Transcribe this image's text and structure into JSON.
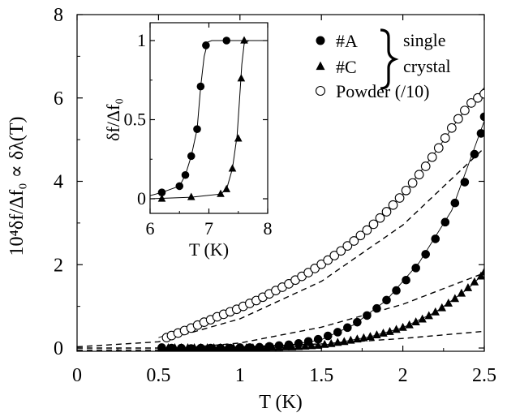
{
  "chart_data": [
    {
      "type": "scatter",
      "title": "",
      "xlabel": "T (K)",
      "ylabel": "10⁴δf/Δf₀ ∝ δλ(T)",
      "xlim": [
        0,
        2.5
      ],
      "ylim": [
        -0.2,
        8
      ],
      "x_ticks": [
        "0",
        "0.5",
        "1",
        "1.5",
        "2",
        "2.5"
      ],
      "y_ticks": [
        "0",
        "2",
        "4",
        "6",
        "8"
      ],
      "legend": {
        "placement": "top-right",
        "entries": [
          {
            "label": "#A",
            "marker": "filled-circle"
          },
          {
            "label": "#C",
            "marker": "filled-triangle"
          },
          {
            "label": "Powder (/10)",
            "marker": "open-circle"
          }
        ],
        "brace_label": [
          "single",
          "crystal"
        ]
      },
      "series": [
        {
          "name": "#A",
          "marker": "filled-circle",
          "points": [
            [
              0.52,
              0.01
            ],
            [
              0.58,
              0.0
            ],
            [
              0.64,
              0.0
            ],
            [
              0.7,
              -0.01
            ],
            [
              0.76,
              0.0
            ],
            [
              0.82,
              0.0
            ],
            [
              0.88,
              0.0
            ],
            [
              0.94,
              0.0
            ],
            [
              1.0,
              0.01
            ],
            [
              1.06,
              0.01
            ],
            [
              1.12,
              0.02
            ],
            [
              1.18,
              0.04
            ],
            [
              1.24,
              0.06
            ],
            [
              1.3,
              0.08
            ],
            [
              1.36,
              0.11
            ],
            [
              1.42,
              0.16
            ],
            [
              1.48,
              0.21
            ],
            [
              1.54,
              0.29
            ],
            [
              1.6,
              0.38
            ],
            [
              1.66,
              0.49
            ],
            [
              1.72,
              0.62
            ],
            [
              1.78,
              0.78
            ],
            [
              1.84,
              0.95
            ],
            [
              1.9,
              1.15
            ],
            [
              1.96,
              1.38
            ],
            [
              2.02,
              1.63
            ],
            [
              2.08,
              1.92
            ],
            [
              2.14,
              2.25
            ],
            [
              2.2,
              2.62
            ],
            [
              2.26,
              3.02
            ],
            [
              2.32,
              3.48
            ],
            [
              2.38,
              3.98
            ],
            [
              2.44,
              4.65
            ],
            [
              2.48,
              5.15
            ],
            [
              2.5,
              5.55
            ]
          ]
        },
        {
          "name": "#C",
          "marker": "filled-triangle",
          "points": [
            [
              0.52,
              0.0
            ],
            [
              0.56,
              0.0
            ],
            [
              0.6,
              0.0
            ],
            [
              0.64,
              0.0
            ],
            [
              0.68,
              0.0
            ],
            [
              0.72,
              0.0
            ],
            [
              0.76,
              0.0
            ],
            [
              0.8,
              0.0
            ],
            [
              0.84,
              0.0
            ],
            [
              0.88,
              0.0
            ],
            [
              0.92,
              0.0
            ],
            [
              0.96,
              0.0
            ],
            [
              1.0,
              0.0
            ],
            [
              1.04,
              0.0
            ],
            [
              1.08,
              0.0
            ],
            [
              1.12,
              0.0
            ],
            [
              1.16,
              0.0
            ],
            [
              1.2,
              0.01
            ],
            [
              1.24,
              0.01
            ],
            [
              1.28,
              0.02
            ],
            [
              1.32,
              0.02
            ],
            [
              1.36,
              0.03
            ],
            [
              1.4,
              0.04
            ],
            [
              1.44,
              0.05
            ],
            [
              1.48,
              0.06
            ],
            [
              1.52,
              0.08
            ],
            [
              1.56,
              0.1
            ],
            [
              1.6,
              0.13
            ],
            [
              1.64,
              0.15
            ],
            [
              1.68,
              0.18
            ],
            [
              1.72,
              0.21
            ],
            [
              1.76,
              0.24
            ],
            [
              1.8,
              0.27
            ],
            [
              1.84,
              0.31
            ],
            [
              1.88,
              0.35
            ],
            [
              1.92,
              0.39
            ],
            [
              1.96,
              0.44
            ],
            [
              2.0,
              0.49
            ],
            [
              2.04,
              0.55
            ],
            [
              2.08,
              0.62
            ],
            [
              2.12,
              0.69
            ],
            [
              2.16,
              0.77
            ],
            [
              2.2,
              0.86
            ],
            [
              2.24,
              0.96
            ],
            [
              2.28,
              1.07
            ],
            [
              2.32,
              1.18
            ],
            [
              2.36,
              1.31
            ],
            [
              2.4,
              1.44
            ],
            [
              2.44,
              1.58
            ],
            [
              2.48,
              1.72
            ],
            [
              2.5,
              1.82
            ]
          ]
        },
        {
          "name": "Powder (/10)",
          "marker": "open-circle",
          "points": [
            [
              0.55,
              0.25
            ],
            [
              0.58,
              0.3
            ],
            [
              0.62,
              0.36
            ],
            [
              0.66,
              0.42
            ],
            [
              0.7,
              0.48
            ],
            [
              0.74,
              0.55
            ],
            [
              0.78,
              0.62
            ],
            [
              0.82,
              0.68
            ],
            [
              0.86,
              0.75
            ],
            [
              0.9,
              0.81
            ],
            [
              0.94,
              0.87
            ],
            [
              0.98,
              0.93
            ],
            [
              1.02,
              1.0
            ],
            [
              1.06,
              1.07
            ],
            [
              1.1,
              1.14
            ],
            [
              1.14,
              1.22
            ],
            [
              1.18,
              1.3
            ],
            [
              1.22,
              1.38
            ],
            [
              1.26,
              1.46
            ],
            [
              1.3,
              1.54
            ],
            [
              1.34,
              1.63
            ],
            [
              1.38,
              1.72
            ],
            [
              1.42,
              1.81
            ],
            [
              1.46,
              1.91
            ],
            [
              1.5,
              2.01
            ],
            [
              1.54,
              2.11
            ],
            [
              1.58,
              2.22
            ],
            [
              1.62,
              2.33
            ],
            [
              1.66,
              2.45
            ],
            [
              1.7,
              2.57
            ],
            [
              1.74,
              2.7
            ],
            [
              1.78,
              2.83
            ],
            [
              1.82,
              2.97
            ],
            [
              1.86,
              3.12
            ],
            [
              1.9,
              3.27
            ],
            [
              1.94,
              3.43
            ],
            [
              1.98,
              3.6
            ],
            [
              2.02,
              3.78
            ],
            [
              2.06,
              3.96
            ],
            [
              2.1,
              4.16
            ],
            [
              2.14,
              4.36
            ],
            [
              2.18,
              4.58
            ],
            [
              2.22,
              4.8
            ],
            [
              2.26,
              5.04
            ],
            [
              2.3,
              5.28
            ],
            [
              2.34,
              5.5
            ],
            [
              2.38,
              5.7
            ],
            [
              2.42,
              5.88
            ],
            [
              2.46,
              6.0
            ],
            [
              2.5,
              6.1
            ]
          ]
        }
      ],
      "fits": [
        {
          "style": "solid",
          "points": [
            [
              0.5,
              0.0
            ],
            [
              0.9,
              0.0
            ],
            [
              1.1,
              0.02
            ],
            [
              1.3,
              0.07
            ],
            [
              1.5,
              0.2
            ],
            [
              1.7,
              0.56
            ],
            [
              1.9,
              1.15
            ],
            [
              2.1,
              2.05
            ],
            [
              2.3,
              3.3
            ],
            [
              2.5,
              5.45
            ]
          ]
        },
        {
          "style": "solid",
          "points": [
            [
              0.5,
              0.25
            ],
            [
              0.8,
              0.65
            ],
            [
              1.1,
              1.12
            ],
            [
              1.4,
              1.76
            ],
            [
              1.7,
              2.57
            ],
            [
              2.0,
              3.68
            ],
            [
              2.2,
              4.7
            ],
            [
              2.35,
              5.55
            ],
            [
              2.5,
              6.25
            ]
          ]
        },
        {
          "style": "solid",
          "points": [
            [
              0.5,
              0.0
            ],
            [
              1.2,
              0.0
            ],
            [
              1.5,
              0.06
            ],
            [
              1.8,
              0.27
            ],
            [
              2.0,
              0.49
            ],
            [
              2.2,
              0.86
            ],
            [
              2.4,
              1.42
            ],
            [
              2.5,
              1.8
            ]
          ]
        },
        {
          "style": "dashed",
          "points": [
            [
              0.0,
              0.03
            ],
            [
              0.5,
              0.15
            ],
            [
              1.0,
              0.7
            ],
            [
              1.5,
              1.6
            ],
            [
              2.0,
              2.95
            ],
            [
              2.5,
              4.8
            ]
          ]
        },
        {
          "style": "dashed",
          "points": [
            [
              0.0,
              -0.05
            ],
            [
              0.5,
              -0.05
            ],
            [
              1.0,
              0.12
            ],
            [
              1.5,
              0.5
            ],
            [
              2.0,
              1.05
            ],
            [
              2.5,
              1.8
            ]
          ]
        },
        {
          "style": "dashed",
          "points": [
            [
              0.0,
              0.0
            ],
            [
              0.5,
              0.0
            ],
            [
              1.0,
              0.03
            ],
            [
              1.5,
              0.1
            ],
            [
              2.0,
              0.23
            ],
            [
              2.5,
              0.4
            ]
          ]
        }
      ],
      "grid": false
    },
    {
      "type": "scatter",
      "title": "",
      "xlabel": "T (K)",
      "ylabel": "δf/Δf₀",
      "xlim": [
        6,
        8
      ],
      "ylim": [
        -0.1,
        1.1
      ],
      "x_ticks": [
        "6",
        "7",
        "8"
      ],
      "y_ticks": [
        "0",
        "0.5",
        "1"
      ],
      "series": [
        {
          "name": "#A",
          "marker": "filled-circle",
          "points": [
            [
              6.2,
              0.04
            ],
            [
              6.5,
              0.08
            ],
            [
              6.6,
              0.15
            ],
            [
              6.7,
              0.27
            ],
            [
              6.8,
              0.44
            ],
            [
              6.86,
              0.71
            ],
            [
              6.95,
              0.97
            ],
            [
              7.3,
              1.0
            ]
          ]
        },
        {
          "name": "#C",
          "marker": "filled-triangle",
          "points": [
            [
              6.2,
              0.0
            ],
            [
              6.7,
              0.01
            ],
            [
              7.2,
              0.03
            ],
            [
              7.3,
              0.06
            ],
            [
              7.4,
              0.19
            ],
            [
              7.5,
              0.38
            ],
            [
              7.55,
              0.76
            ],
            [
              7.6,
              1.0
            ]
          ]
        }
      ],
      "fits": [
        {
          "style": "solid",
          "points": [
            [
              6.0,
              0.02
            ],
            [
              6.2,
              0.04
            ],
            [
              6.5,
              0.08
            ],
            [
              6.6,
              0.15
            ],
            [
              6.7,
              0.27
            ],
            [
              6.8,
              0.44
            ],
            [
              6.86,
              0.71
            ],
            [
              6.92,
              0.9
            ],
            [
              6.98,
              0.99
            ],
            [
              7.05,
              1.0
            ],
            [
              8.0,
              1.0
            ]
          ]
        },
        {
          "style": "solid",
          "points": [
            [
              6.0,
              0.0
            ],
            [
              6.7,
              0.01
            ],
            [
              7.2,
              0.03
            ],
            [
              7.3,
              0.06
            ],
            [
              7.4,
              0.19
            ],
            [
              7.48,
              0.4
            ],
            [
              7.52,
              0.62
            ],
            [
              7.56,
              0.85
            ],
            [
              7.6,
              0.98
            ],
            [
              7.68,
              1.0
            ],
            [
              8.0,
              1.0
            ]
          ]
        }
      ]
    }
  ]
}
